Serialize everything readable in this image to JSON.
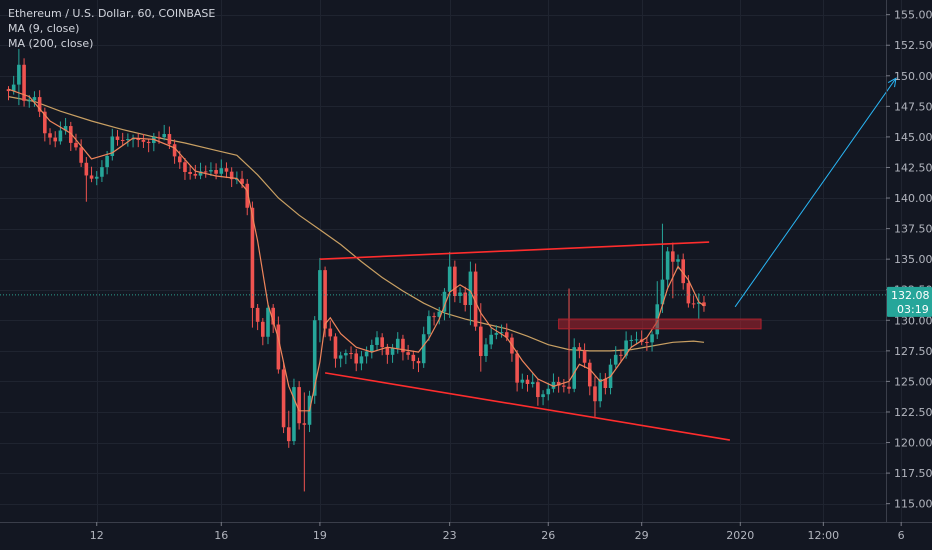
{
  "legend": {
    "symbol": "Ethereum / U.S. Dollar, 60, COINBASE",
    "ma9": "MA (9, close)",
    "ma200": "MA (200, close)"
  },
  "price_tag": {
    "price": "132.08",
    "countdown": "03:19"
  },
  "colors": {
    "background": "#131722",
    "grid": "#1f2430",
    "up": "#26a69a",
    "down": "#ef5350",
    "ma9": "#f0855b",
    "ma200": "#c9a063",
    "trendline": "#ff2d2d",
    "zone": "#b0222e",
    "arrow": "#29b6f6",
    "price_line": "#2b9e8f",
    "tag": "#26a69a"
  },
  "chart_data": {
    "type": "candlestick",
    "y_ticks": [
      "155.00",
      "152.50",
      "150.00",
      "147.50",
      "145.00",
      "142.50",
      "140.00",
      "137.50",
      "135.00",
      "132.50",
      "130.00",
      "127.50",
      "125.00",
      "122.50",
      "120.00",
      "117.50",
      "115.00"
    ],
    "ylim": [
      113.5,
      156.2
    ],
    "x_ticks": [
      "12",
      "16",
      "19",
      "23",
      "26",
      "29",
      "2020",
      "12:00",
      "6"
    ],
    "x_index": [
      17,
      41,
      60,
      85,
      104,
      122,
      141,
      157,
      172
    ],
    "last_price": 132.08,
    "path_points": [
      [
        0,
        149.2
      ],
      [
        1,
        148.9
      ],
      [
        2,
        151.3
      ],
      [
        3,
        147.9
      ],
      [
        5,
        148.3
      ],
      [
        7,
        145.6
      ],
      [
        9,
        144.6
      ],
      [
        11,
        145.6
      ],
      [
        12,
        144.8
      ],
      [
        14,
        142.6
      ],
      [
        16,
        141.2
      ],
      [
        18,
        142.4
      ],
      [
        20,
        144.8
      ],
      [
        22,
        144.6
      ],
      [
        24,
        145.2
      ],
      [
        26,
        144.6
      ],
      [
        28,
        145.3
      ],
      [
        30,
        144.8
      ],
      [
        32,
        143.6
      ],
      [
        34,
        142.4
      ],
      [
        36,
        141.4
      ],
      [
        38,
        142.2
      ],
      [
        40,
        141.9
      ],
      [
        42,
        142.2
      ],
      [
        44,
        141.4
      ],
      [
        45,
        140.9
      ],
      [
        46,
        139.4
      ],
      [
        47,
        131.0
      ],
      [
        48,
        130.2
      ],
      [
        49,
        129.0
      ],
      [
        50,
        131.2
      ],
      [
        51,
        130.0
      ],
      [
        52,
        125.7
      ],
      [
        53,
        121.2
      ],
      [
        54,
        120.2
      ],
      [
        55,
        124.2
      ],
      [
        56,
        121.6
      ],
      [
        57,
        121.7
      ],
      [
        58,
        124.0
      ],
      [
        59,
        130.3
      ],
      [
        60,
        134.4
      ],
      [
        61,
        129.7
      ],
      [
        62,
        128.4
      ],
      [
        63,
        127.3
      ],
      [
        65,
        127.7
      ],
      [
        67,
        126.7
      ],
      [
        69,
        127.6
      ],
      [
        71,
        128.6
      ],
      [
        73,
        127.6
      ],
      [
        75,
        128.4
      ],
      [
        77,
        127.0
      ],
      [
        79,
        126.9
      ],
      [
        81,
        130.4
      ],
      [
        83,
        130.9
      ],
      [
        85,
        134.5
      ],
      [
        86,
        132.0
      ],
      [
        87,
        132.4
      ],
      [
        88,
        131.3
      ],
      [
        89,
        133.6
      ],
      [
        90,
        129.2
      ],
      [
        91,
        127.4
      ],
      [
        93,
        128.6
      ],
      [
        95,
        128.8
      ],
      [
        97,
        127.6
      ],
      [
        98,
        125.3
      ],
      [
        100,
        125.0
      ],
      [
        102,
        124.1
      ],
      [
        104,
        124.4
      ],
      [
        106,
        124.8
      ],
      [
        108,
        124.2
      ],
      [
        109,
        127.4
      ],
      [
        110,
        127.8
      ],
      [
        111,
        126.4
      ],
      [
        112,
        125.0
      ],
      [
        113,
        123.8
      ],
      [
        114,
        125.2
      ],
      [
        115,
        124.5
      ],
      [
        116,
        126.4
      ],
      [
        118,
        127.2
      ],
      [
        120,
        128.6
      ],
      [
        122,
        127.8
      ],
      [
        124,
        129.3
      ],
      [
        125,
        131.1
      ],
      [
        127,
        135.9
      ],
      [
        128,
        134.4
      ],
      [
        129,
        135.2
      ],
      [
        130,
        133.1
      ],
      [
        131,
        131.1
      ],
      [
        132,
        131.1
      ],
      [
        133,
        131.9
      ],
      [
        134,
        131.1
      ]
    ],
    "spikes": [
      [
        2,
        152.2,
        147.6
      ],
      [
        15,
        143.1,
        139.7
      ],
      [
        47,
        139.1,
        129.4
      ],
      [
        54,
        122.6,
        119.6
      ],
      [
        57,
        124.1,
        116.0
      ],
      [
        60,
        135.1,
        128.2
      ],
      [
        85,
        135.6,
        130.2
      ],
      [
        89,
        134.8,
        129.6
      ],
      [
        91,
        131.4,
        125.8
      ],
      [
        108,
        132.6,
        124.0
      ],
      [
        113,
        125.4,
        122.1
      ],
      [
        125,
        133.2,
        129.4
      ],
      [
        126,
        137.9,
        130.6
      ],
      [
        128,
        136.0,
        131.8
      ],
      [
        133,
        132.2,
        130.1
      ]
    ],
    "ma9": [
      [
        0,
        148.9
      ],
      [
        4,
        148.3
      ],
      [
        8,
        146.3
      ],
      [
        12,
        145.3
      ],
      [
        16,
        143.2
      ],
      [
        20,
        143.7
      ],
      [
        24,
        144.9
      ],
      [
        28,
        144.8
      ],
      [
        32,
        144.1
      ],
      [
        36,
        142.2
      ],
      [
        40,
        141.8
      ],
      [
        44,
        141.6
      ],
      [
        46,
        140.6
      ],
      [
        48,
        136.5
      ],
      [
        50,
        131.3
      ],
      [
        52,
        128.5
      ],
      [
        54,
        124.6
      ],
      [
        56,
        122.6
      ],
      [
        58,
        122.6
      ],
      [
        60,
        126.6
      ],
      [
        61,
        129.7
      ],
      [
        62,
        130.2
      ],
      [
        64,
        128.9
      ],
      [
        67,
        127.8
      ],
      [
        70,
        127.4
      ],
      [
        73,
        127.8
      ],
      [
        76,
        127.6
      ],
      [
        79,
        127.4
      ],
      [
        81,
        128.5
      ],
      [
        83,
        130.1
      ],
      [
        85,
        132.3
      ],
      [
        87,
        132.9
      ],
      [
        89,
        132.4
      ],
      [
        91,
        130.6
      ],
      [
        93,
        129.4
      ],
      [
        96,
        128.6
      ],
      [
        99,
        126.7
      ],
      [
        102,
        125.2
      ],
      [
        105,
        124.6
      ],
      [
        108,
        125.0
      ],
      [
        110,
        126.4
      ],
      [
        112,
        126.0
      ],
      [
        114,
        125.0
      ],
      [
        116,
        125.4
      ],
      [
        118,
        126.6
      ],
      [
        120,
        127.8
      ],
      [
        123,
        128.6
      ],
      [
        125,
        129.9
      ],
      [
        127,
        132.6
      ],
      [
        129,
        134.4
      ],
      [
        131,
        133.3
      ],
      [
        133,
        131.5
      ],
      [
        134,
        131.2
      ]
    ],
    "ma200": [
      [
        0,
        148.3
      ],
      [
        5,
        147.9
      ],
      [
        10,
        147.1
      ],
      [
        16,
        146.3
      ],
      [
        22,
        145.6
      ],
      [
        28,
        145.0
      ],
      [
        34,
        144.5
      ],
      [
        40,
        143.9
      ],
      [
        44,
        143.5
      ],
      [
        48,
        141.9
      ],
      [
        52,
        140.0
      ],
      [
        56,
        138.6
      ],
      [
        60,
        137.4
      ],
      [
        64,
        136.2
      ],
      [
        68,
        134.8
      ],
      [
        72,
        133.5
      ],
      [
        76,
        132.4
      ],
      [
        80,
        131.4
      ],
      [
        84,
        130.6
      ],
      [
        88,
        130.1
      ],
      [
        92,
        129.7
      ],
      [
        96,
        129.3
      ],
      [
        100,
        128.7
      ],
      [
        104,
        128.0
      ],
      [
        108,
        127.6
      ],
      [
        112,
        127.5
      ],
      [
        116,
        127.5
      ],
      [
        120,
        127.6
      ],
      [
        124,
        127.9
      ],
      [
        128,
        128.2
      ],
      [
        132,
        128.3
      ],
      [
        134,
        128.2
      ]
    ],
    "trend_upper": [
      [
        60,
        135.0
      ],
      [
        135,
        136.4
      ]
    ],
    "trend_lower": [
      [
        61,
        125.7
      ],
      [
        139,
        120.2
      ]
    ],
    "resistance_zone": {
      "x0": 106,
      "x1": 145,
      "y0": 129.3,
      "y1": 130.1
    },
    "projection_arrow": [
      [
        140,
        131.1
      ],
      [
        171,
        149.8
      ]
    ]
  }
}
